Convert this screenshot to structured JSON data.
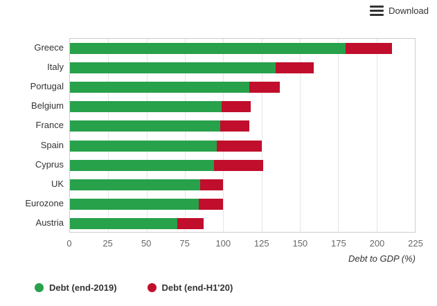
{
  "toolbar": {
    "download_label": "Download"
  },
  "chart_data": {
    "type": "bar",
    "orientation": "horizontal",
    "stacked": true,
    "categories": [
      "Greece",
      "Italy",
      "Portugal",
      "Belgium",
      "France",
      "Spain",
      "Cyprus",
      "UK",
      "Eurozone",
      "Austria"
    ],
    "series": [
      {
        "name": "Debt (end-2019)",
        "color": "#28a14b",
        "values": [
          180,
          134,
          117,
          99,
          98,
          96,
          94,
          85,
          84,
          70
        ]
      },
      {
        "name": "Debt (end-H1'20)",
        "color": "#c00e2c",
        "values": [
          30,
          25,
          20,
          19,
          19,
          29,
          32,
          15,
          16,
          17
        ]
      }
    ],
    "stack_totals": [
      210,
      159,
      137,
      118,
      117,
      125,
      126,
      100,
      100,
      87
    ],
    "title": "",
    "xlabel": "Debt to GDP (%)",
    "ylabel": "",
    "xlim": [
      0,
      225
    ],
    "xticks": [
      0,
      25,
      50,
      75,
      100,
      125,
      150,
      175,
      200,
      225
    ],
    "grid": true,
    "legend_position": "bottom-left"
  }
}
